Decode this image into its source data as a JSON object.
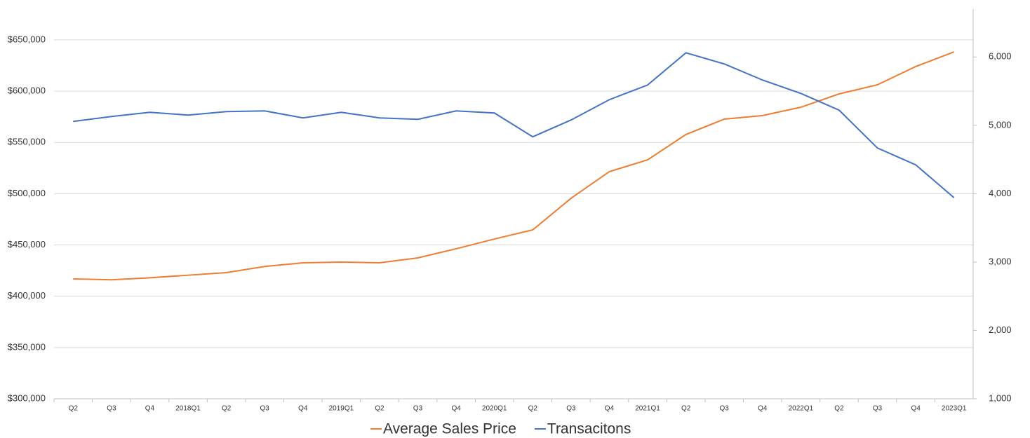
{
  "chart_data": {
    "type": "line",
    "categories": [
      "Q2",
      "Q3",
      "Q4",
      "2018Q1",
      "Q2",
      "Q3",
      "Q4",
      "2019Q1",
      "Q2",
      "Q3",
      "Q4",
      "2020Q1",
      "Q2",
      "Q3",
      "Q4",
      "2021Q1",
      "Q2",
      "Q3",
      "Q4",
      "2022Q1",
      "Q2",
      "Q3",
      "Q4",
      "2023Q1"
    ],
    "series": [
      {
        "name": "Average Sales Price",
        "color": "#ed7d31",
        "values": [
          416900,
          416000,
          418000,
          420500,
          423000,
          429000,
          432600,
          433300,
          432600,
          437400,
          446300,
          455800,
          464700,
          495500,
          521500,
          533000,
          557700,
          572700,
          576200,
          584300,
          597300,
          606200,
          624000,
          638300
        ]
      },
      {
        "name": "Transacitons",
        "color": "#4472c4",
        "axis": "y2",
        "values": [
          5057,
          5129,
          5190,
          5150,
          5201,
          5211,
          5109,
          5190,
          5109,
          5088,
          5211,
          5180,
          4832,
          5078,
          5375,
          5590,
          6061,
          5898,
          5662,
          5467,
          5221,
          4668,
          4422,
          3941
        ]
      }
    ],
    "ylim": [
      300000,
      680000
    ],
    "yticks": [
      {
        "value": 300000,
        "label": "$300,000"
      },
      {
        "value": 350000,
        "label": "$350,000"
      },
      {
        "value": 400000,
        "label": "$400,000"
      },
      {
        "value": 450000,
        "label": "$450,000"
      },
      {
        "value": 500000,
        "label": "$500,000"
      },
      {
        "value": 550000,
        "label": "$550,000"
      },
      {
        "value": 600000,
        "label": "$600,000"
      },
      {
        "value": 650000,
        "label": "$650,000"
      }
    ],
    "y2lim": [
      1000,
      6700
    ],
    "y2ticks": [
      {
        "value": 1000,
        "label": "1,000"
      },
      {
        "value": 2000,
        "label": "2,000"
      },
      {
        "value": 3000,
        "label": "3,000"
      },
      {
        "value": 4000,
        "label": "4,000"
      },
      {
        "value": 5000,
        "label": "5,000"
      },
      {
        "value": 6000,
        "label": "6,000"
      }
    ],
    "grid": true,
    "legend": "bottom"
  }
}
